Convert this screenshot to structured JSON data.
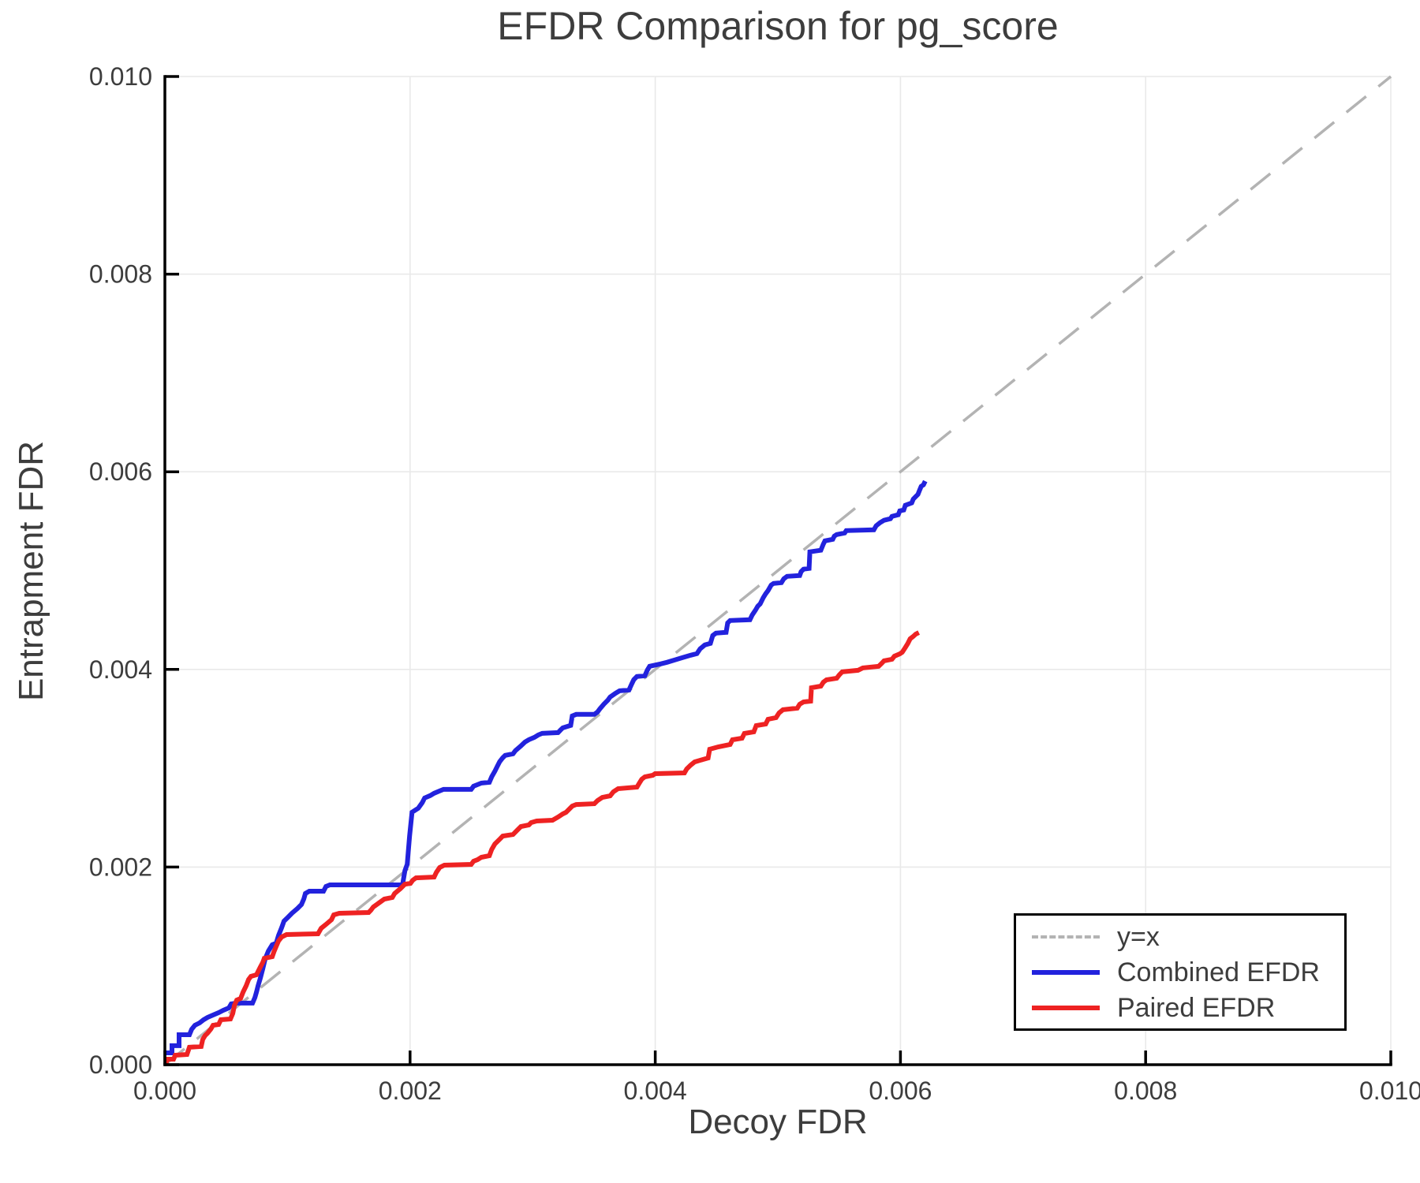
{
  "chart_data": {
    "type": "line",
    "title": "EFDR Comparison for pg_score",
    "xlabel": "Decoy FDR",
    "ylabel": "Entrapment FDR",
    "xlim": [
      0.0,
      0.01
    ],
    "ylim": [
      0.0,
      0.01
    ],
    "grid": true,
    "legend_position": "lower right",
    "background_color": "#ffffff",
    "grid_color": "#e9e9e9",
    "spine_color": "#000000",
    "text_color": "#3d3d3d",
    "value_scale": 1e-06,
    "x_ticks_micro": [
      0,
      2000,
      4000,
      6000,
      8000,
      10000
    ],
    "x_tick_labels": [
      "0.000",
      "0.002",
      "0.004",
      "0.006",
      "0.008",
      "0.010"
    ],
    "y_ticks_micro": [
      0,
      2000,
      4000,
      6000,
      8000,
      10000
    ],
    "y_tick_labels": [
      "0.000",
      "0.002",
      "0.004",
      "0.006",
      "0.008",
      "0.010"
    ],
    "series": [
      {
        "name": "y=x",
        "style": "dashed",
        "color": "#b3b3b3",
        "points_micro": [
          [
            0,
            0
          ],
          [
            10000,
            10000
          ]
        ]
      },
      {
        "name": "Combined EFDR",
        "style": "solid",
        "color": "#2222dd",
        "points_micro": [
          [
            6,
            120
          ],
          [
            58,
            120
          ],
          [
            58,
            192
          ],
          [
            116,
            192
          ],
          [
            116,
            303
          ],
          [
            200,
            303
          ],
          [
            219,
            359
          ],
          [
            245,
            399
          ],
          [
            283,
            423
          ],
          [
            316,
            455
          ],
          [
            348,
            479
          ],
          [
            393,
            503
          ],
          [
            438,
            527
          ],
          [
            477,
            551
          ],
          [
            522,
            575
          ],
          [
            541,
            615
          ],
          [
            586,
            623
          ],
          [
            715,
            623
          ],
          [
            734,
            679
          ],
          [
            747,
            734
          ],
          [
            760,
            798
          ],
          [
            779,
            878
          ],
          [
            799,
            974
          ],
          [
            818,
            1070
          ],
          [
            844,
            1150
          ],
          [
            876,
            1214
          ],
          [
            908,
            1230
          ],
          [
            927,
            1309
          ],
          [
            953,
            1389
          ],
          [
            972,
            1453
          ],
          [
            1005,
            1493
          ],
          [
            1037,
            1533
          ],
          [
            1082,
            1581
          ],
          [
            1114,
            1621
          ],
          [
            1133,
            1677
          ],
          [
            1146,
            1733
          ],
          [
            1178,
            1756
          ],
          [
            1294,
            1756
          ],
          [
            1314,
            1804
          ],
          [
            1346,
            1820
          ],
          [
            1938,
            1820
          ],
          [
            1958,
            1964
          ],
          [
            1977,
            2028
          ],
          [
            1996,
            2315
          ],
          [
            2016,
            2555
          ],
          [
            2067,
            2595
          ],
          [
            2099,
            2651
          ],
          [
            2119,
            2699
          ],
          [
            2164,
            2723
          ],
          [
            2196,
            2747
          ],
          [
            2241,
            2770
          ],
          [
            2273,
            2786
          ],
          [
            2499,
            2786
          ],
          [
            2518,
            2818
          ],
          [
            2550,
            2834
          ],
          [
            2582,
            2850
          ],
          [
            2647,
            2858
          ],
          [
            2666,
            2914
          ],
          [
            2692,
            2970
          ],
          [
            2711,
            3018
          ],
          [
            2731,
            3066
          ],
          [
            2756,
            3106
          ],
          [
            2776,
            3130
          ],
          [
            2840,
            3146
          ],
          [
            2859,
            3178
          ],
          [
            2904,
            3226
          ],
          [
            2937,
            3265
          ],
          [
            2969,
            3289
          ],
          [
            3014,
            3313
          ],
          [
            3046,
            3337
          ],
          [
            3078,
            3353
          ],
          [
            3207,
            3361
          ],
          [
            3226,
            3385
          ],
          [
            3246,
            3409
          ],
          [
            3310,
            3433
          ],
          [
            3323,
            3529
          ],
          [
            3355,
            3545
          ],
          [
            3503,
            3545
          ],
          [
            3529,
            3569
          ],
          [
            3548,
            3601
          ],
          [
            3581,
            3649
          ],
          [
            3613,
            3689
          ],
          [
            3632,
            3721
          ],
          [
            3677,
            3760
          ],
          [
            3709,
            3784
          ],
          [
            3786,
            3792
          ],
          [
            3806,
            3848
          ],
          [
            3825,
            3896
          ],
          [
            3851,
            3928
          ],
          [
            3915,
            3936
          ],
          [
            3935,
            3992
          ],
          [
            3954,
            4032
          ],
          [
            4044,
            4056
          ],
          [
            4095,
            4072
          ],
          [
            4160,
            4096
          ],
          [
            4224,
            4120
          ],
          [
            4289,
            4144
          ],
          [
            4340,
            4160
          ],
          [
            4366,
            4208
          ],
          [
            4405,
            4248
          ],
          [
            4450,
            4263
          ],
          [
            4469,
            4343
          ],
          [
            4495,
            4367
          ],
          [
            4578,
            4375
          ],
          [
            4591,
            4471
          ],
          [
            4611,
            4495
          ],
          [
            4772,
            4503
          ],
          [
            4791,
            4551
          ],
          [
            4817,
            4599
          ],
          [
            4836,
            4639
          ],
          [
            4856,
            4663
          ],
          [
            4881,
            4726
          ],
          [
            4901,
            4766
          ],
          [
            4920,
            4798
          ],
          [
            4946,
            4854
          ],
          [
            4965,
            4870
          ],
          [
            5029,
            4878
          ],
          [
            5049,
            4918
          ],
          [
            5075,
            4942
          ],
          [
            5178,
            4950
          ],
          [
            5190,
            4990
          ],
          [
            5210,
            5014
          ],
          [
            5255,
            5022
          ],
          [
            5261,
            5190
          ],
          [
            5351,
            5206
          ],
          [
            5371,
            5269
          ],
          [
            5384,
            5301
          ],
          [
            5448,
            5317
          ],
          [
            5461,
            5349
          ],
          [
            5480,
            5365
          ],
          [
            5545,
            5381
          ],
          [
            5558,
            5405
          ],
          [
            5783,
            5413
          ],
          [
            5802,
            5453
          ],
          [
            5834,
            5485
          ],
          [
            5866,
            5509
          ],
          [
            5918,
            5525
          ],
          [
            5931,
            5549
          ],
          [
            5982,
            5565
          ],
          [
            5995,
            5605
          ],
          [
            6027,
            5613
          ],
          [
            6040,
            5661
          ],
          [
            6092,
            5685
          ],
          [
            6105,
            5724
          ],
          [
            6124,
            5748
          ],
          [
            6143,
            5772
          ],
          [
            6156,
            5812
          ],
          [
            6169,
            5852
          ],
          [
            6188,
            5868
          ],
          [
            6202,
            5905
          ]
        ]
      },
      {
        "name": "Paired EFDR",
        "style": "solid",
        "color": "#ee2222",
        "points_micro": [
          [
            6,
            0
          ],
          [
            19,
            56
          ],
          [
            71,
            56
          ],
          [
            84,
            96
          ],
          [
            180,
            104
          ],
          [
            200,
            176
          ],
          [
            296,
            184
          ],
          [
            309,
            255
          ],
          [
            328,
            295
          ],
          [
            348,
            319
          ],
          [
            374,
            359
          ],
          [
            393,
            399
          ],
          [
            438,
            407
          ],
          [
            457,
            455
          ],
          [
            535,
            463
          ],
          [
            554,
            519
          ],
          [
            567,
            599
          ],
          [
            586,
            654
          ],
          [
            618,
            670
          ],
          [
            638,
            734
          ],
          [
            663,
            798
          ],
          [
            683,
            862
          ],
          [
            702,
            894
          ],
          [
            747,
            910
          ],
          [
            760,
            942
          ],
          [
            779,
            990
          ],
          [
            799,
            1037
          ],
          [
            811,
            1077
          ],
          [
            876,
            1093
          ],
          [
            889,
            1141
          ],
          [
            908,
            1197
          ],
          [
            927,
            1253
          ],
          [
            953,
            1293
          ],
          [
            992,
            1317
          ],
          [
            1249,
            1325
          ],
          [
            1275,
            1381
          ],
          [
            1314,
            1420
          ],
          [
            1359,
            1468
          ],
          [
            1378,
            1516
          ],
          [
            1423,
            1532
          ],
          [
            1662,
            1540
          ],
          [
            1681,
            1564
          ],
          [
            1700,
            1596
          ],
          [
            1745,
            1636
          ],
          [
            1790,
            1676
          ],
          [
            1855,
            1692
          ],
          [
            1874,
            1732
          ],
          [
            1919,
            1779
          ],
          [
            1958,
            1827
          ],
          [
            2003,
            1835
          ],
          [
            2022,
            1867
          ],
          [
            2048,
            1891
          ],
          [
            2196,
            1899
          ],
          [
            2215,
            1947
          ],
          [
            2241,
            1995
          ],
          [
            2280,
            2019
          ],
          [
            2499,
            2027
          ],
          [
            2518,
            2059
          ],
          [
            2550,
            2075
          ],
          [
            2582,
            2099
          ],
          [
            2647,
            2115
          ],
          [
            2666,
            2179
          ],
          [
            2692,
            2234
          ],
          [
            2731,
            2282
          ],
          [
            2756,
            2314
          ],
          [
            2840,
            2330
          ],
          [
            2872,
            2370
          ],
          [
            2904,
            2410
          ],
          [
            2969,
            2426
          ],
          [
            2988,
            2450
          ],
          [
            3033,
            2466
          ],
          [
            3162,
            2474
          ],
          [
            3207,
            2506
          ],
          [
            3246,
            2538
          ],
          [
            3272,
            2554
          ],
          [
            3323,
            2617
          ],
          [
            3355,
            2633
          ],
          [
            3503,
            2641
          ],
          [
            3529,
            2673
          ],
          [
            3568,
            2705
          ],
          [
            3632,
            2721
          ],
          [
            3658,
            2761
          ],
          [
            3697,
            2793
          ],
          [
            3851,
            2809
          ],
          [
            3870,
            2849
          ],
          [
            3890,
            2889
          ],
          [
            3915,
            2913
          ],
          [
            3980,
            2929
          ],
          [
            3999,
            2945
          ],
          [
            4238,
            2953
          ],
          [
            4257,
            2993
          ],
          [
            4289,
            3032
          ],
          [
            4321,
            3064
          ],
          [
            4386,
            3088
          ],
          [
            4431,
            3104
          ],
          [
            4444,
            3192
          ],
          [
            4514,
            3216
          ],
          [
            4611,
            3240
          ],
          [
            4630,
            3288
          ],
          [
            4708,
            3304
          ],
          [
            4727,
            3352
          ],
          [
            4804,
            3368
          ],
          [
            4824,
            3432
          ],
          [
            4901,
            3448
          ],
          [
            4920,
            3496
          ],
          [
            4985,
            3512
          ],
          [
            5010,
            3560
          ],
          [
            5042,
            3592
          ],
          [
            5158,
            3608
          ],
          [
            5178,
            3648
          ],
          [
            5210,
            3671
          ],
          [
            5268,
            3679
          ],
          [
            5274,
            3815
          ],
          [
            5351,
            3831
          ],
          [
            5371,
            3871
          ],
          [
            5397,
            3895
          ],
          [
            5480,
            3911
          ],
          [
            5500,
            3943
          ],
          [
            5525,
            3975
          ],
          [
            5654,
            3991
          ],
          [
            5693,
            4015
          ],
          [
            5822,
            4031
          ],
          [
            5848,
            4063
          ],
          [
            5866,
            4087
          ],
          [
            5931,
            4103
          ],
          [
            5951,
            4134
          ],
          [
            5996,
            4158
          ],
          [
            6015,
            4174
          ],
          [
            6040,
            4222
          ],
          [
            6060,
            4262
          ],
          [
            6079,
            4310
          ],
          [
            6105,
            4334
          ],
          [
            6124,
            4357
          ],
          [
            6150,
            4373
          ]
        ]
      }
    ]
  }
}
